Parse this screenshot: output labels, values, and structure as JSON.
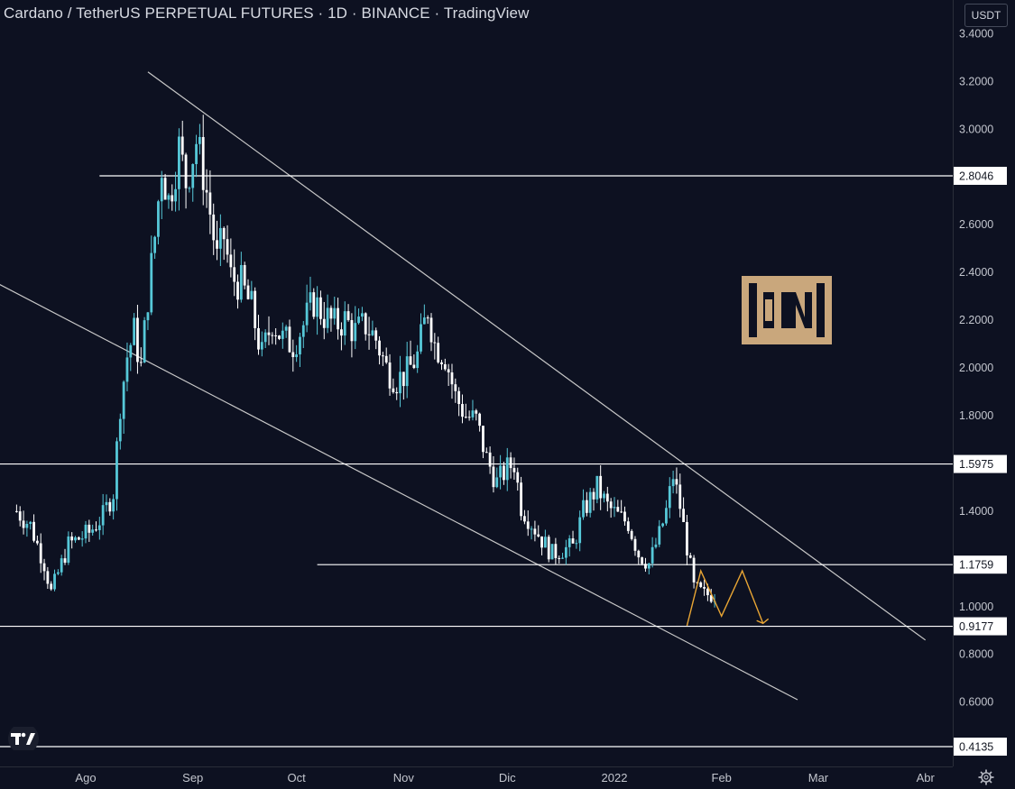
{
  "header": {
    "title": "Cardano / TetherUS PERPETUAL FUTURES · 1D · BINANCE · TradingView",
    "currency_label": "USDT"
  },
  "icons": {
    "tradingview_logo": "tradingview-logo-icon",
    "watermark": "beincrypto-logo-icon",
    "settings": "gear-icon"
  },
  "colors": {
    "background": "#0d1121",
    "candle_up": "#56c8d8",
    "candle_down": "#ffffff",
    "level_line": "#ffffff",
    "trend_line": "#c8c8c8",
    "projection": "#e8a534",
    "brand": "#c9a77c"
  },
  "chart_data": {
    "type": "candlestick",
    "title": "Cardano / TetherUS PERPETUAL FUTURES · 1D · BINANCE · TradingView",
    "ylim": [
      0.3,
      3.5
    ],
    "y_ticks": [
      "3.4000",
      "3.2000",
      "3.0000",
      "2.6000",
      "2.4000",
      "2.2000",
      "2.0000",
      "1.8000",
      "1.4000",
      "1.0000",
      "0.8000",
      "0.6000"
    ],
    "x_ticks": [
      {
        "label": "Ago",
        "date": "2021-08-01"
      },
      {
        "label": "Sep",
        "date": "2021-09-01"
      },
      {
        "label": "Oct",
        "date": "2021-10-01"
      },
      {
        "label": "Nov",
        "date": "2021-11-01"
      },
      {
        "label": "Dic",
        "date": "2021-12-01"
      },
      {
        "label": "2022",
        "date": "2022-01-01"
      },
      {
        "label": "Feb",
        "date": "2022-02-01"
      },
      {
        "label": "Mar",
        "date": "2022-03-01"
      },
      {
        "label": "Abr",
        "date": "2022-04-01"
      }
    ],
    "price_path": [
      [
        "2021-07-12",
        1.4
      ],
      [
        "2021-07-16",
        1.34
      ],
      [
        "2021-07-20",
        1.18
      ],
      [
        "2021-07-22",
        1.06
      ],
      [
        "2021-07-27",
        1.26
      ],
      [
        "2021-08-02",
        1.31
      ],
      [
        "2021-08-06",
        1.38
      ],
      [
        "2021-08-09",
        1.48
      ],
      [
        "2021-08-11",
        1.85
      ],
      [
        "2021-08-13",
        2.05
      ],
      [
        "2021-08-15",
        2.15
      ],
      [
        "2021-08-17",
        2.0
      ],
      [
        "2021-08-19",
        2.3
      ],
      [
        "2021-08-21",
        2.55
      ],
      [
        "2021-08-23",
        2.85
      ],
      [
        "2021-08-25",
        2.7
      ],
      [
        "2021-08-28",
        2.92
      ],
      [
        "2021-08-30",
        2.78
      ],
      [
        "2021-09-02",
        2.95
      ],
      [
        "2021-09-04",
        2.82
      ],
      [
        "2021-09-06",
        2.65
      ],
      [
        "2021-09-08",
        2.45
      ],
      [
        "2021-09-10",
        2.55
      ],
      [
        "2021-09-12",
        2.38
      ],
      [
        "2021-09-15",
        2.35
      ],
      [
        "2021-09-18",
        2.25
      ],
      [
        "2021-09-21",
        2.05
      ],
      [
        "2021-09-24",
        2.2
      ],
      [
        "2021-09-27",
        2.12
      ],
      [
        "2021-09-30",
        2.1
      ],
      [
        "2021-10-03",
        2.18
      ],
      [
        "2021-10-06",
        2.28
      ],
      [
        "2021-10-09",
        2.22
      ],
      [
        "2021-10-12",
        2.18
      ],
      [
        "2021-10-15",
        2.2
      ],
      [
        "2021-10-18",
        2.15
      ],
      [
        "2021-10-21",
        2.18
      ],
      [
        "2021-10-24",
        2.12
      ],
      [
        "2021-10-27",
        2.0
      ],
      [
        "2021-10-30",
        1.95
      ],
      [
        "2021-11-02",
        1.98
      ],
      [
        "2021-11-05",
        2.05
      ],
      [
        "2021-11-08",
        2.25
      ],
      [
        "2021-11-10",
        2.1
      ],
      [
        "2021-11-13",
        2.05
      ],
      [
        "2021-11-16",
        1.88
      ],
      [
        "2021-11-19",
        1.8
      ],
      [
        "2021-11-22",
        1.78
      ],
      [
        "2021-11-25",
        1.62
      ],
      [
        "2021-11-28",
        1.52
      ],
      [
        "2021-12-01",
        1.58
      ],
      [
        "2021-12-03",
        1.6
      ],
      [
        "2021-12-05",
        1.42
      ],
      [
        "2021-12-08",
        1.35
      ],
      [
        "2021-12-11",
        1.28
      ],
      [
        "2021-12-14",
        1.22
      ],
      [
        "2021-12-17",
        1.24
      ],
      [
        "2021-12-20",
        1.25
      ],
      [
        "2021-12-23",
        1.4
      ],
      [
        "2021-12-27",
        1.5
      ],
      [
        "2021-12-30",
        1.42
      ],
      [
        "2022-01-02",
        1.38
      ],
      [
        "2022-01-05",
        1.35
      ],
      [
        "2022-01-08",
        1.22
      ],
      [
        "2022-01-11",
        1.18
      ],
      [
        "2022-01-14",
        1.3
      ],
      [
        "2022-01-16",
        1.4
      ],
      [
        "2022-01-18",
        1.55
      ],
      [
        "2022-01-20",
        1.42
      ],
      [
        "2022-01-22",
        1.25
      ],
      [
        "2022-01-24",
        1.08
      ],
      [
        "2022-01-27",
        1.05
      ],
      [
        "2022-01-30",
        1.05
      ]
    ],
    "horizontal_levels": [
      {
        "value": 2.8046,
        "label": "2.8046"
      },
      {
        "value": 1.5975,
        "label": "1.5975"
      },
      {
        "value": 1.1759,
        "label": "1.1759"
      },
      {
        "value": 0.9177,
        "label": "0.9177"
      },
      {
        "value": 0.4135,
        "label": "0.4135"
      }
    ],
    "trend_lines": [
      {
        "name": "upper-channel",
        "from": [
          "2021-08-19",
          3.24
        ],
        "to": [
          "2022-04-01",
          0.86
        ]
      },
      {
        "name": "lower-channel",
        "from": [
          "2021-07-07",
          2.35
        ],
        "to": [
          "2022-02-23",
          0.61
        ]
      }
    ],
    "projection": [
      [
        "2022-01-22",
        0.92
      ],
      [
        "2022-01-26",
        1.15
      ],
      [
        "2022-02-01",
        0.96
      ],
      [
        "2022-02-07",
        1.15
      ],
      [
        "2022-02-13",
        0.93
      ]
    ]
  }
}
